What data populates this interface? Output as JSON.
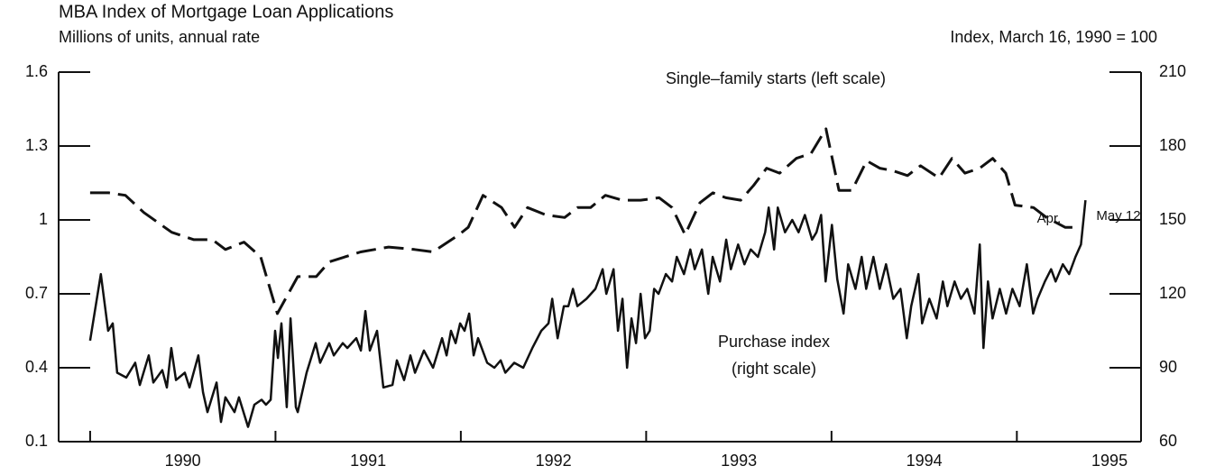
{
  "chart_data": {
    "type": "line",
    "title": "MBA Index of Mortgage Loan Applications",
    "ylabel": "Millions of units, annual rate",
    "y2label": "Index, March 16, 1990 = 100",
    "xlim": [
      1989.83,
      1995.67
    ],
    "xticks": [
      {
        "value": 1990.5,
        "label": "1990"
      },
      {
        "value": 1991.5,
        "label": "1991"
      },
      {
        "value": 1992.5,
        "label": "1992"
      },
      {
        "value": 1993.5,
        "label": "1993"
      },
      {
        "value": 1994.5,
        "label": "1994"
      },
      {
        "value": 1995.5,
        "label": "1995"
      }
    ],
    "xtick_marks": [
      1990,
      1991,
      1992,
      1993,
      1994,
      1995
    ],
    "ylim": [
      0.1,
      1.6
    ],
    "yticks": [
      0.1,
      0.4,
      0.7,
      1,
      1.3,
      1.6
    ],
    "y2lim": [
      60,
      210
    ],
    "y2ticks": [
      60,
      90,
      120,
      150,
      180,
      210
    ],
    "annotations": [
      "Single–family starts (left scale)",
      "Purchase index",
      "(right scale)",
      "Apr.",
      "May 12"
    ],
    "series": [
      {
        "name": "Single–family starts",
        "color": "#111111",
        "dash": true,
        "axis": "y",
        "x": [
          1990.0,
          1990.1,
          1990.19,
          1990.29,
          1990.44,
          1990.56,
          1990.66,
          1990.73,
          1990.83,
          1990.92,
          1991.01,
          1991.12,
          1991.22,
          1991.29,
          1991.46,
          1991.61,
          1991.75,
          1991.85,
          1991.99,
          1992.04,
          1992.12,
          1992.22,
          1992.29,
          1992.36,
          1992.46,
          1992.56,
          1992.63,
          1992.7,
          1992.78,
          1992.87,
          1992.97,
          1993.07,
          1993.14,
          1993.21,
          1993.29,
          1993.36,
          1993.43,
          1993.51,
          1993.58,
          1993.65,
          1993.72,
          1993.81,
          1993.89,
          1993.97,
          1994.04,
          1994.11,
          1994.19,
          1994.26,
          1994.33,
          1994.41,
          1994.48,
          1994.58,
          1994.65,
          1994.72,
          1994.8,
          1994.87,
          1994.94,
          1994.99,
          1995.09,
          1995.16,
          1995.26,
          1995.31
        ],
        "values": [
          1.11,
          1.11,
          1.1,
          1.03,
          0.95,
          0.92,
          0.92,
          0.88,
          0.91,
          0.85,
          0.62,
          0.77,
          0.77,
          0.83,
          0.87,
          0.89,
          0.88,
          0.87,
          0.94,
          0.97,
          1.1,
          1.05,
          0.97,
          1.05,
          1.02,
          1.01,
          1.05,
          1.05,
          1.1,
          1.08,
          1.08,
          1.09,
          1.05,
          0.94,
          1.07,
          1.11,
          1.09,
          1.08,
          1.14,
          1.21,
          1.19,
          1.25,
          1.27,
          1.37,
          1.12,
          1.12,
          1.24,
          1.21,
          1.2,
          1.18,
          1.22,
          1.17,
          1.25,
          1.19,
          1.21,
          1.25,
          1.19,
          1.06,
          1.05,
          1.01,
          0.97,
          0.97
        ]
      },
      {
        "name": "Purchase index",
        "color": "#111111",
        "dash": false,
        "axis": "y2",
        "x": [
          1990.0,
          1990.058,
          1990.097,
          1990.122,
          1990.146,
          1990.195,
          1990.243,
          1990.268,
          1990.316,
          1990.341,
          1990.389,
          1990.414,
          1990.438,
          1990.463,
          1990.511,
          1990.536,
          1990.584,
          1990.609,
          1990.633,
          1990.682,
          1990.706,
          1990.73,
          1990.779,
          1990.803,
          1990.852,
          1990.886,
          1990.925,
          1990.949,
          1990.974,
          1990.998,
          1991.013,
          1991.032,
          1991.061,
          1991.081,
          1991.11,
          1991.12,
          1991.168,
          1991.217,
          1991.241,
          1991.29,
          1991.315,
          1991.363,
          1991.388,
          1991.436,
          1991.461,
          1991.485,
          1991.509,
          1991.548,
          1991.582,
          1991.631,
          1991.655,
          1991.694,
          1991.728,
          1991.753,
          1991.801,
          1991.85,
          1991.899,
          1991.923,
          1991.947,
          1991.972,
          1991.996,
          1992.02,
          1992.045,
          1992.069,
          1992.093,
          1992.142,
          1992.181,
          1992.215,
          1992.24,
          1992.288,
          1992.337,
          1992.386,
          1992.434,
          1992.473,
          1992.493,
          1992.522,
          1992.556,
          1992.58,
          1992.605,
          1992.629,
          1992.678,
          1992.726,
          1992.765,
          1992.785,
          1992.824,
          1992.848,
          1992.872,
          1992.897,
          1992.921,
          1992.945,
          1992.97,
          1992.994,
          1993.019,
          1993.043,
          1993.067,
          1993.106,
          1993.14,
          1993.165,
          1993.204,
          1993.238,
          1993.262,
          1993.301,
          1993.335,
          1993.359,
          1993.398,
          1993.432,
          1993.457,
          1993.496,
          1993.53,
          1993.564,
          1993.603,
          1993.642,
          1993.661,
          1993.69,
          1993.71,
          1993.749,
          1993.788,
          1993.822,
          1993.856,
          1993.895,
          1993.919,
          1993.944,
          1993.968,
          1994.002,
          1994.031,
          1994.065,
          1994.09,
          1994.129,
          1994.163,
          1994.187,
          1994.226,
          1994.26,
          1994.294,
          1994.333,
          1994.372,
          1994.406,
          1994.43,
          1994.469,
          1994.489,
          1994.528,
          1994.567,
          1994.601,
          1994.625,
          1994.664,
          1994.698,
          1994.732,
          1994.771,
          1994.8,
          1994.82,
          1994.844,
          1994.869,
          1994.908,
          1994.942,
          1994.976,
          1995.015,
          1995.054,
          1995.088,
          1995.112,
          1995.151,
          1995.185,
          1995.209,
          1995.248,
          1995.282,
          1995.316,
          1995.346,
          1995.37
        ],
        "values": [
          101,
          128,
          105,
          108,
          88,
          86,
          92,
          83,
          95,
          84,
          89,
          82,
          98,
          85,
          88,
          82,
          95,
          80,
          72,
          84,
          68,
          78,
          72,
          78,
          66,
          75,
          77,
          75,
          77,
          105,
          94,
          108,
          74,
          110,
          74,
          72,
          88,
          100,
          92,
          100,
          95,
          100,
          98,
          102,
          97,
          113,
          97,
          105,
          82,
          83,
          93,
          85,
          95,
          88,
          97,
          90,
          102,
          95,
          105,
          100,
          108,
          105,
          112,
          95,
          102,
          92,
          90,
          93,
          88,
          92,
          90,
          98,
          105,
          108,
          118,
          102,
          115,
          115,
          122,
          115,
          118,
          122,
          130,
          120,
          130,
          105,
          118,
          90,
          110,
          100,
          120,
          102,
          105,
          122,
          120,
          128,
          125,
          135,
          128,
          138,
          130,
          138,
          120,
          135,
          125,
          142,
          130,
          140,
          132,
          138,
          135,
          145,
          155,
          138,
          155,
          145,
          150,
          145,
          152,
          142,
          145,
          152,
          125,
          148,
          126,
          112,
          132,
          122,
          135,
          122,
          135,
          122,
          132,
          118,
          122,
          102,
          115,
          128,
          108,
          118,
          110,
          125,
          115,
          125,
          118,
          122,
          112,
          140,
          98,
          125,
          110,
          122,
          112,
          122,
          115,
          132,
          112,
          118,
          125,
          130,
          125,
          132,
          128,
          135,
          140,
          158
        ]
      }
    ]
  }
}
